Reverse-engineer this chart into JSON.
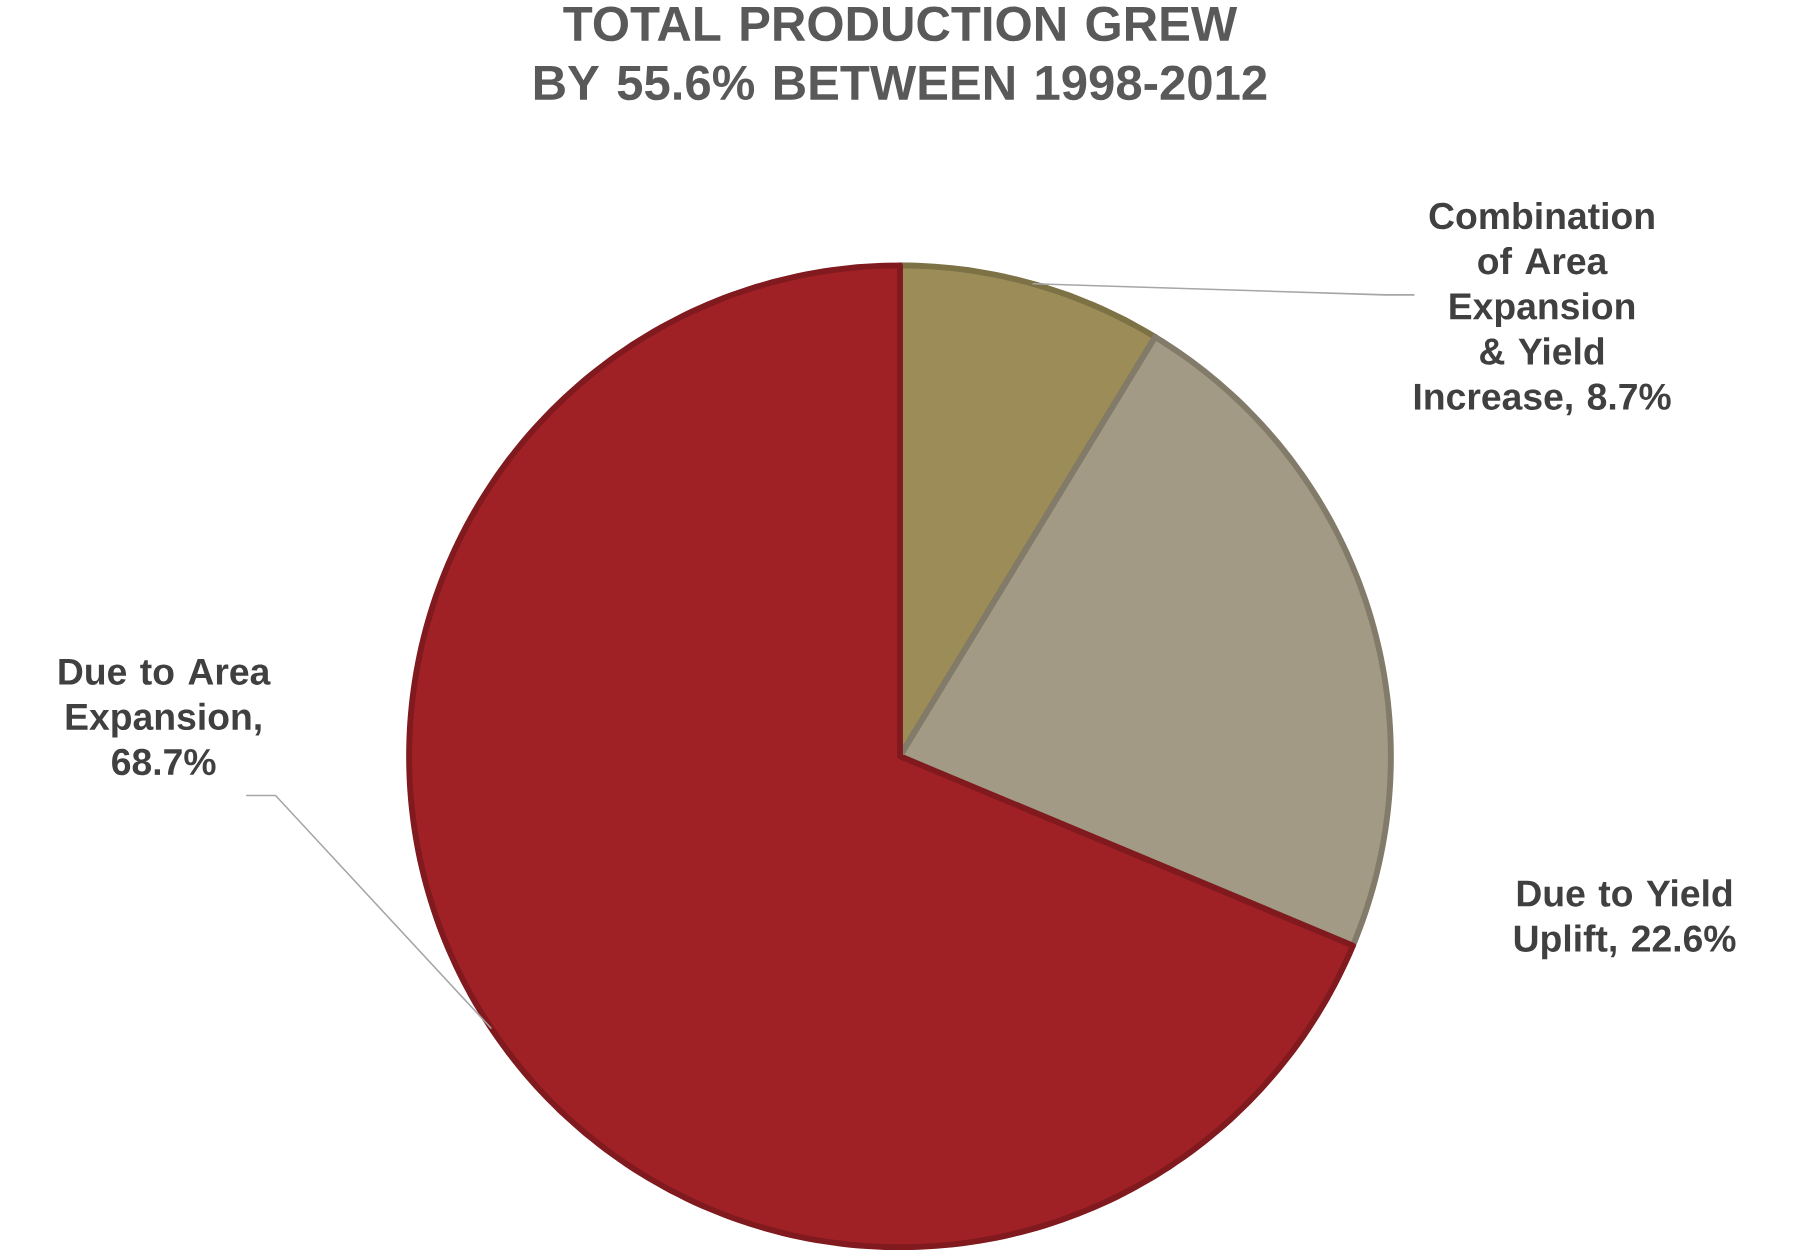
{
  "chart_data": {
    "type": "pie",
    "title": "TOTAL PRODUCTION GREW BY 55.6% BETWEEN 1998-2012",
    "categories": [
      "Combination of Area Expansion & Yield Increase, 8.7%",
      "Due to Yield Uplift, 22.6%",
      "Due to Area Expansion, 68.7%"
    ],
    "values": [
      8.7,
      22.6,
      68.7
    ],
    "colors": [
      "#9c8d58",
      "#a39a85",
      "#a02125"
    ]
  }
}
